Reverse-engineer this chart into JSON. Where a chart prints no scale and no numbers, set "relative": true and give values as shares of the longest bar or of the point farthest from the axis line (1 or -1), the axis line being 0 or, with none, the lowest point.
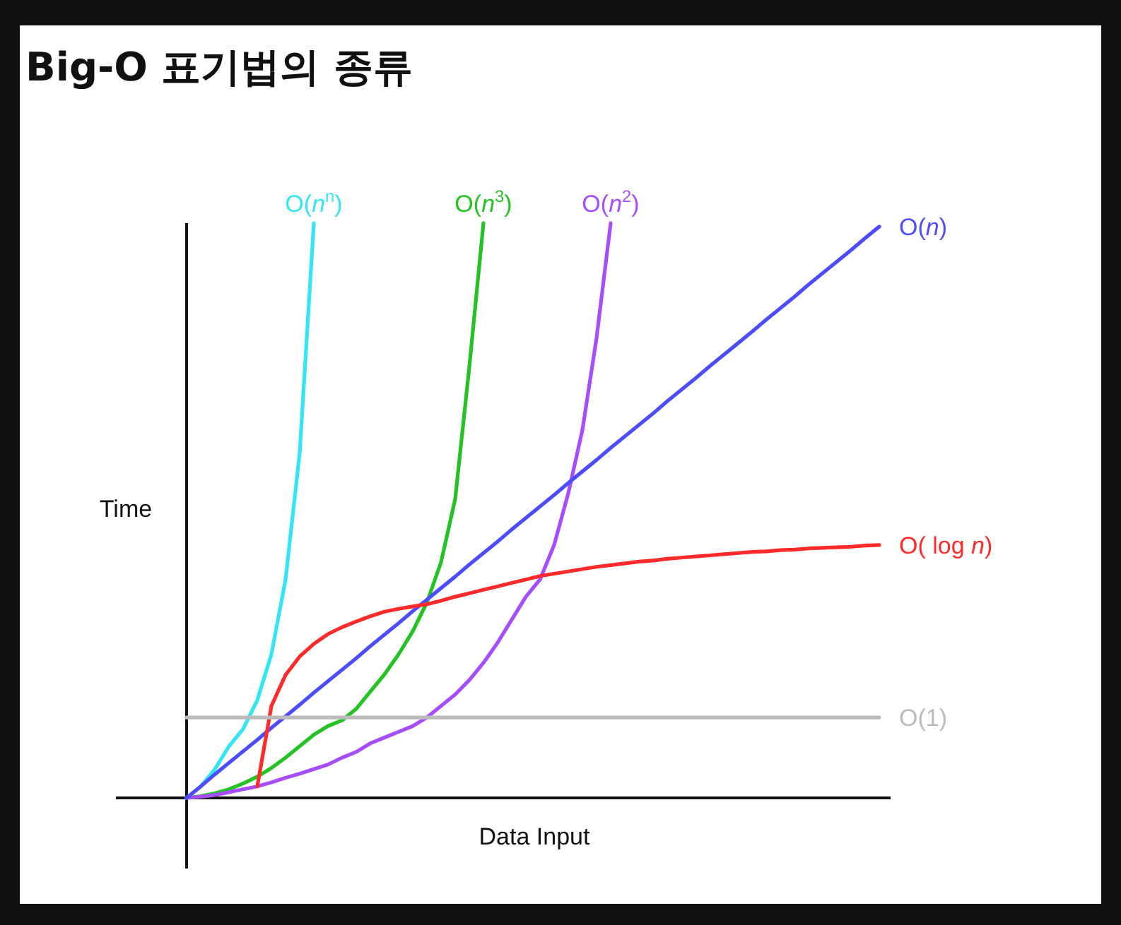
{
  "chart_data": {
    "type": "line",
    "title": "Big-O 표기법의 종류",
    "xlabel": "Data Input",
    "ylabel": "Time",
    "relative": true,
    "legend": false,
    "categories": [
      null,
      null,
      null,
      null,
      null,
      null,
      null,
      null,
      null,
      null,
      null,
      null,
      null,
      null,
      null,
      null,
      null,
      null,
      null,
      null,
      null,
      null,
      null,
      null,
      null,
      null,
      null,
      null,
      null,
      null,
      null,
      null,
      null,
      null,
      null,
      null,
      null,
      null,
      null,
      null,
      null,
      null,
      null,
      null,
      null,
      null,
      null,
      null,
      null,
      null
    ],
    "series": [
      {
        "name": "O(*n*$^{n}$)",
        "color": "#33e6f5",
        "values": [
          0,
          0.02,
          0.05,
          0.09,
          0.12,
          0.17,
          0.25,
          0.38,
          0.6,
          1.0,
          null,
          null,
          null,
          null,
          null,
          null,
          null,
          null,
          null,
          null,
          null,
          null,
          null,
          null,
          null,
          null,
          null,
          null,
          null,
          null,
          null,
          null,
          null,
          null,
          null,
          null,
          null,
          null,
          null,
          null,
          null,
          null,
          null,
          null,
          null,
          null,
          null,
          null,
          null,
          null
        ]
      },
      {
        "name": "O(*n*$^{3}$)",
        "color": "#22c322",
        "values": [
          0,
          0.003,
          0.008,
          0.015,
          0.025,
          0.037,
          0.052,
          0.07,
          0.09,
          0.11,
          0.125,
          0.135,
          0.155,
          0.185,
          0.215,
          0.25,
          0.29,
          0.34,
          0.41,
          0.52,
          0.75,
          1.0,
          null,
          null,
          null,
          null,
          null,
          null,
          null,
          null,
          null,
          null,
          null,
          null,
          null,
          null,
          null,
          null,
          null,
          null,
          null,
          null,
          null,
          null,
          null,
          null,
          null,
          null,
          null,
          null
        ]
      },
      {
        "name": "O(*n*$^{2}$)",
        "color": "#a64dff",
        "values": [
          0,
          0.002,
          0.005,
          0.01,
          0.015,
          0.02,
          0.027,
          0.035,
          0.042,
          0.05,
          0.058,
          0.07,
          0.08,
          0.095,
          0.105,
          0.115,
          0.125,
          0.14,
          0.16,
          0.18,
          0.205,
          0.235,
          0.27,
          0.31,
          0.35,
          0.38,
          0.44,
          0.53,
          0.64,
          0.8,
          1.0,
          null,
          null,
          null,
          null,
          null,
          null,
          null,
          null,
          null,
          null,
          null,
          null,
          null,
          null,
          null,
          null,
          null,
          null,
          null
        ]
      },
      {
        "name": "O(*n*)",
        "color": "#4d4dff",
        "values": [
          0,
          0.02,
          0.041,
          0.061,
          0.081,
          0.101,
          0.122,
          0.142,
          0.162,
          0.183,
          0.203,
          0.223,
          0.243,
          0.264,
          0.284,
          0.304,
          0.325,
          0.345,
          0.365,
          0.385,
          0.406,
          0.426,
          0.446,
          0.467,
          0.487,
          0.507,
          0.527,
          0.548,
          0.568,
          0.588,
          0.609,
          0.629,
          0.649,
          0.669,
          0.69,
          0.71,
          0.73,
          0.751,
          0.771,
          0.791,
          0.811,
          0.832,
          0.852,
          0.872,
          0.893,
          0.913,
          0.933,
          0.953,
          0.974,
          0.994
        ]
      },
      {
        "name": "O( log *n*)",
        "color": "#ff2a2a",
        "values": [
          null,
          null,
          null,
          null,
          null,
          0.02,
          0.16,
          0.214,
          0.246,
          0.268,
          0.285,
          0.297,
          0.307,
          0.316,
          0.324,
          0.329,
          0.333,
          0.337,
          0.343,
          0.35,
          0.356,
          0.362,
          0.368,
          0.374,
          0.38,
          0.386,
          0.39,
          0.394,
          0.398,
          0.402,
          0.405,
          0.408,
          0.411,
          0.413,
          0.416,
          0.418,
          0.42,
          0.422,
          0.424,
          0.426,
          0.428,
          0.429,
          0.431,
          0.432,
          0.434,
          0.435,
          0.436,
          0.437,
          0.439,
          0.44
        ]
      },
      {
        "name": "O(1)",
        "color": "#bbbbbb",
        "values": [
          0.14,
          0.14,
          0.14,
          0.14,
          0.14,
          0.14,
          0.14,
          0.14,
          0.14,
          0.14,
          0.14,
          0.14,
          0.14,
          0.14,
          0.14,
          0.14,
          0.14,
          0.14,
          0.14,
          0.14,
          0.14,
          0.14,
          0.14,
          0.14,
          0.14,
          0.14,
          0.14,
          0.14,
          0.14,
          0.14,
          0.14,
          0.14,
          0.14,
          0.14,
          0.14,
          0.14,
          0.14,
          0.14,
          0.14,
          0.14,
          0.14,
          0.14,
          0.14,
          0.14,
          0.14,
          0.14,
          0.14,
          0.14,
          0.14,
          0.14
        ]
      }
    ]
  }
}
